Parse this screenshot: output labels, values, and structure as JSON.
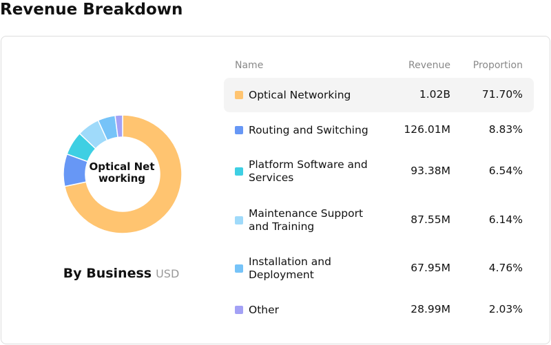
{
  "chart_data": {
    "type": "pie",
    "title": "Revenue Breakdown",
    "subtitle": "By Business",
    "unit": "USD",
    "center_label": "Optical Networking",
    "donut": true,
    "columns": [
      "Name",
      "Revenue",
      "Proportion"
    ],
    "categories": [
      "Optical Networking",
      "Routing and Switching",
      "Platform Software and Services",
      "Maintenance Support and Training",
      "Installation and Deployment",
      "Other"
    ],
    "revenue": [
      {
        "value": 1020000000,
        "label": "1.02B"
      },
      {
        "value": 126010000,
        "label": "126.01M"
      },
      {
        "value": 93380000,
        "label": "93.38M"
      },
      {
        "value": 87550000,
        "label": "87.55M"
      },
      {
        "value": 67950000,
        "label": "67.95M"
      },
      {
        "value": 28990000,
        "label": "28.99M"
      }
    ],
    "values": [
      71.7,
      8.83,
      6.54,
      6.14,
      4.76,
      2.03
    ],
    "value_labels": [
      "71.70%",
      "8.83%",
      "6.54%",
      "6.14%",
      "4.76%",
      "2.03%"
    ],
    "colors": [
      "#ffc470",
      "#6797f5",
      "#3ecfe3",
      "#9fdafa",
      "#76c3f8",
      "#a3a1f5"
    ],
    "highlighted": 0
  }
}
